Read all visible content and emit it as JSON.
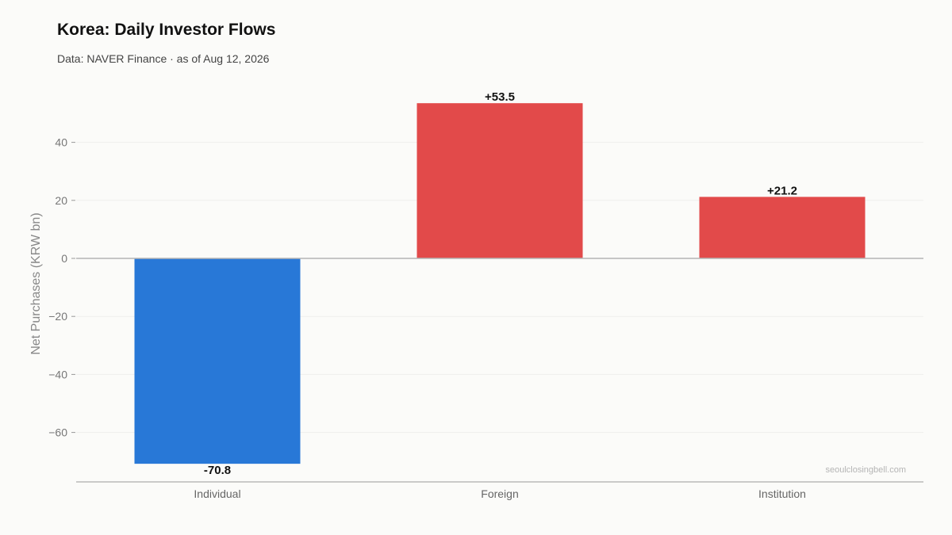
{
  "chart_data": {
    "type": "bar",
    "title": "Korea: Daily Investor Flows",
    "subtitle": "Data: NAVER Finance · as of Aug 12, 2026",
    "xlabel": "",
    "ylabel": "Net Purchases (KRW bn)",
    "categories": [
      "Individual",
      "Foreign",
      "Institution"
    ],
    "values": [
      -70.8,
      53.5,
      21.2
    ],
    "value_labels": [
      "-70.8",
      "+53.5",
      "+21.2"
    ],
    "bar_colors": [
      "#2878d7",
      "#e24a4a",
      "#e24a4a"
    ],
    "ylim": [
      -77,
      60
    ],
    "yticks": [
      -60,
      -40,
      -20,
      0,
      20,
      40
    ],
    "ytick_labels": [
      "−60",
      "−40",
      "−20",
      "0",
      "20",
      "40"
    ],
    "grid": true,
    "watermark": "seoulclosingbell.com"
  }
}
